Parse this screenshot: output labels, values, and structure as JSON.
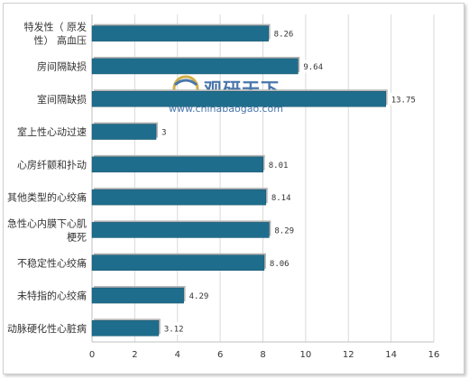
{
  "chart_data": {
    "type": "bar",
    "orientation": "horizontal",
    "categories": [
      [
        "特发性（ 原发",
        "性） 高血压"
      ],
      [
        "房间隔缺损"
      ],
      [
        "室间隔缺损"
      ],
      [
        "室上性心动过速"
      ],
      [
        "心房纤颤和扑动"
      ],
      [
        "其他类型的心绞痛"
      ],
      [
        "急性心内膜下心肌",
        "梗死"
      ],
      [
        "不稳定性心绞痛"
      ],
      [
        "未特指的心绞痛"
      ],
      [
        "动脉硬化性心脏病"
      ]
    ],
    "values": [
      8.26,
      9.64,
      13.75,
      3,
      8.01,
      8.14,
      8.29,
      8.06,
      4.29,
      3.12
    ],
    "value_labels": [
      "8.26",
      "9.64",
      "13.75",
      "3",
      "8.01",
      "8.14",
      "8.29",
      "8.06",
      "4.29",
      "3.12"
    ],
    "xlim": [
      0,
      16
    ],
    "xticks": [
      "0",
      "2",
      "4",
      "6",
      "8",
      "10",
      "12",
      "14",
      "16"
    ],
    "grid": "vertical",
    "title": "",
    "xlabel": "",
    "ylabel": ""
  },
  "colors": {
    "bar": "#1f6d8c",
    "bar_edge": "#13526b",
    "grid": "#d9d9d9",
    "axis": "#bfbfbf",
    "text": "#333333",
    "watermark": "#2a5f9e"
  },
  "watermark": {
    "brand": "观研天下",
    "url": "www.chinabaogao.com",
    "icon": "globe-logo-icon"
  }
}
